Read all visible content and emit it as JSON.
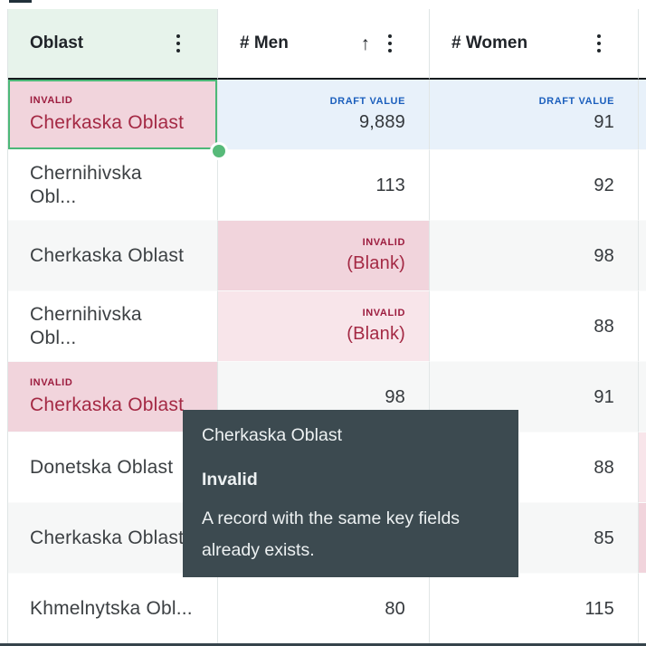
{
  "labels": {
    "invalid_tag": "INVALID",
    "draft_tag": "DRAFT VALUE"
  },
  "icons": {
    "sort_ascending": "↑",
    "kebab": "⋮"
  },
  "header": {
    "columns": [
      {
        "label": "Oblast",
        "selected": true,
        "sorted": false
      },
      {
        "label": "# Men",
        "selected": false,
        "sorted": "ascending"
      },
      {
        "label": "# Women",
        "selected": false,
        "sorted": false
      }
    ]
  },
  "rows": [
    {
      "oblast": "Cherkaska Oblast",
      "oblast_state": "invalid-selected",
      "men": "9,889",
      "men_state": "draft",
      "women": "91",
      "women_state": "draft"
    },
    {
      "oblast": "Chernihivska Obl...",
      "oblast_state": "normal",
      "men": "113",
      "men_state": "normal",
      "women": "92",
      "women_state": "normal"
    },
    {
      "oblast": "Cherkaska Oblast",
      "oblast_state": "normal",
      "men": "(Blank)",
      "men_state": "invalid",
      "women": "98",
      "women_state": "normal"
    },
    {
      "oblast": "Chernihivska Obl...",
      "oblast_state": "normal",
      "men": "(Blank)",
      "men_state": "invalid",
      "women": "88",
      "women_state": "normal"
    },
    {
      "oblast": "Cherkaska Oblast",
      "oblast_state": "invalid",
      "men": "98",
      "men_state": "normal",
      "women": "91",
      "women_state": "normal"
    },
    {
      "oblast": "Donetska Oblast",
      "oblast_state": "normal",
      "men": "",
      "men_state": "hidden-by-tooltip",
      "women": "88",
      "women_state": "normal"
    },
    {
      "oblast": "Cherkaska Oblast",
      "oblast_state": "normal",
      "men": "",
      "men_state": "hidden-by-tooltip",
      "women": "85",
      "women_state": "normal"
    },
    {
      "oblast": "Khmelnytska Obl...",
      "oblast_state": "normal",
      "men": "80",
      "men_state": "normal",
      "women": "115",
      "women_state": "normal"
    }
  ],
  "tooltip": {
    "title": "Cherkaska Oblast",
    "status": "Invalid",
    "message_lines": [
      "A record with the same key fields",
      "already exists."
    ]
  },
  "colors": {
    "accent_green": "#4cb878",
    "selected_header_bg": "#e7f3eb",
    "invalid_text": "#9c1c3e",
    "invalid_bg": "#f1d4dc",
    "invalid_bg_light": "#f8e5ea",
    "draft_text": "#1b5fbd",
    "draft_bg": "#e8f1fa",
    "tooltip_bg": "#3c4a50",
    "zebra_row_bg": "#f6f7f7"
  }
}
